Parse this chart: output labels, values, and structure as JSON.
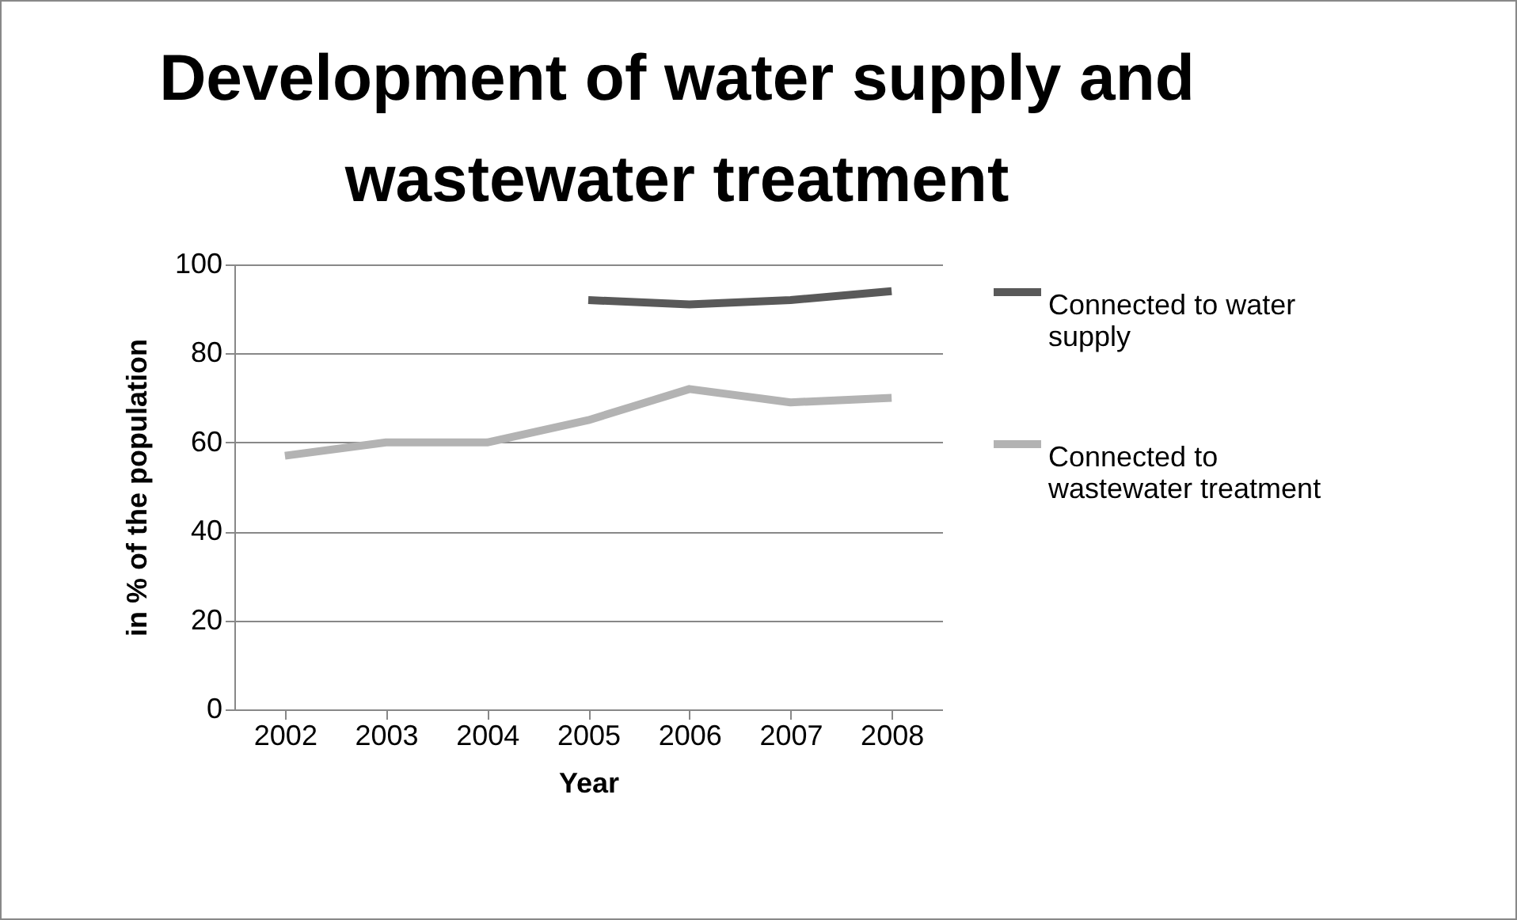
{
  "chart_data": {
    "type": "line",
    "title": "Development of water supply and wastewater treatment",
    "xlabel": "Year",
    "ylabel": "in % of the population",
    "categories": [
      "2002",
      "2003",
      "2004",
      "2005",
      "2006",
      "2007",
      "2008"
    ],
    "series": [
      {
        "name": "Connected to water supply",
        "color": "#595959",
        "values": [
          null,
          null,
          null,
          92,
          91,
          92,
          94
        ]
      },
      {
        "name": "Connected to wastewater treatment",
        "color": "#b3b3b3",
        "values": [
          57,
          60,
          60,
          65,
          72,
          69,
          70
        ]
      }
    ],
    "ylim": [
      0,
      100
    ],
    "yticks": [
      0,
      20,
      40,
      60,
      80,
      100
    ],
    "grid": "y",
    "legend": "right",
    "marker": "none"
  }
}
